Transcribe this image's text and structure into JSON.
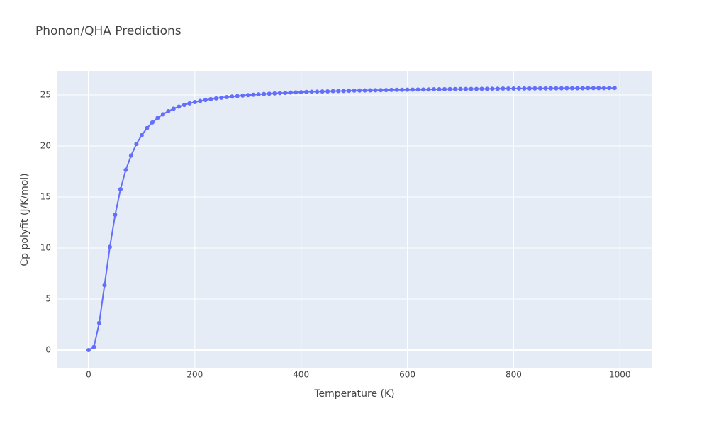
{
  "chart_data": {
    "type": "line",
    "title": "Phonon/QHA Predictions",
    "x_label": "Temperature (K)",
    "y_label": "Cp polyfit (J/K/mol)",
    "x": [
      0,
      10,
      20,
      30,
      40,
      50,
      60,
      70,
      80,
      90,
      100,
      110,
      120,
      130,
      140,
      150,
      160,
      170,
      180,
      190,
      200,
      210,
      220,
      230,
      240,
      250,
      260,
      270,
      280,
      290,
      300,
      310,
      320,
      330,
      340,
      350,
      360,
      370,
      380,
      390,
      400,
      410,
      420,
      430,
      440,
      450,
      460,
      470,
      480,
      490,
      500,
      510,
      520,
      530,
      540,
      550,
      560,
      570,
      580,
      590,
      600,
      610,
      620,
      630,
      640,
      650,
      660,
      670,
      680,
      690,
      700,
      710,
      720,
      730,
      740,
      750,
      760,
      770,
      780,
      790,
      800,
      810,
      820,
      830,
      840,
      850,
      860,
      870,
      880,
      890,
      900,
      910,
      920,
      930,
      940,
      950,
      960,
      970,
      980,
      990
    ],
    "series": [
      {
        "color": "#636efa",
        "values": [
          0,
          0.3,
          2.65,
          6.35,
          10.1,
          13.25,
          15.75,
          17.65,
          19.05,
          20.2,
          21.05,
          21.75,
          22.3,
          22.75,
          23.1,
          23.4,
          23.65,
          23.85,
          24.02,
          24.17,
          24.3,
          24.41,
          24.5,
          24.59,
          24.66,
          24.73,
          24.79,
          24.84,
          24.89,
          24.94,
          24.98,
          25.02,
          25.06,
          25.09,
          25.12,
          25.15,
          25.18,
          25.2,
          25.23,
          25.25,
          25.27,
          25.29,
          25.31,
          25.32,
          25.34,
          25.35,
          25.37,
          25.38,
          25.39,
          25.41,
          25.42,
          25.43,
          25.44,
          25.45,
          25.46,
          25.47,
          25.48,
          25.49,
          25.5,
          25.5,
          25.51,
          25.52,
          25.53,
          25.53,
          25.54,
          25.55,
          25.55,
          25.56,
          25.57,
          25.57,
          25.58,
          25.58,
          25.59,
          25.59,
          25.6,
          25.6,
          25.61,
          25.61,
          25.62,
          25.62,
          25.62,
          25.63,
          25.63,
          25.63,
          25.64,
          25.64,
          25.64,
          25.65,
          25.65,
          25.65,
          25.66,
          25.66,
          25.66,
          25.66,
          25.67,
          25.67,
          25.67,
          25.67,
          25.68,
          25.68
        ]
      }
    ],
    "xlim": [
      -60,
      1061
    ],
    "ylim": [
      -1.74,
      27.36
    ],
    "xticks": [
      0,
      200,
      400,
      600,
      800,
      1000
    ],
    "yticks": [
      0,
      5,
      10,
      15,
      20,
      25
    ],
    "grid": true,
    "zeroline": true
  }
}
